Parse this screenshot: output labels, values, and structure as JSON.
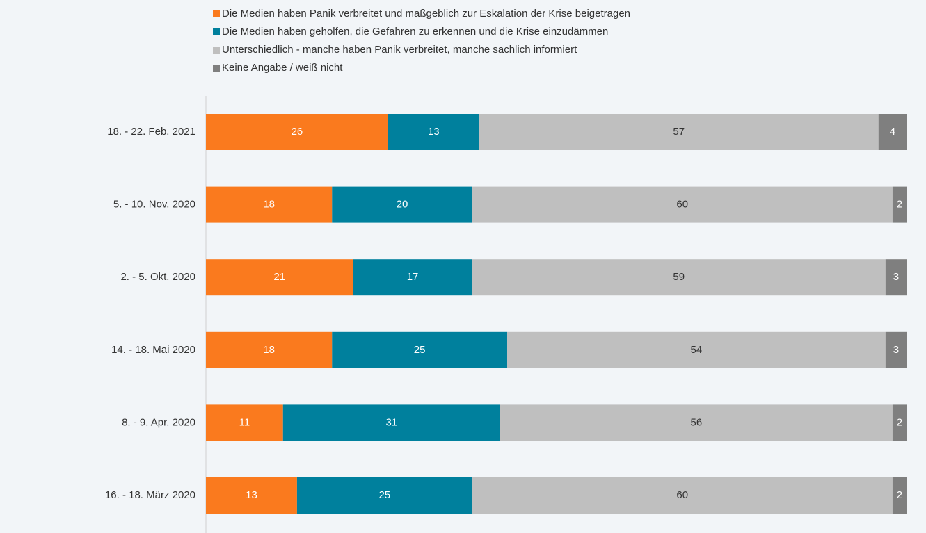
{
  "chart_data": {
    "type": "stacked-bar-horizontal",
    "categories": [
      "18. - 22. Feb. 2021",
      "5. - 10. Nov. 2020",
      "2. - 5. Okt. 2020",
      "14. - 18. Mai 2020",
      "8. - 9. Apr. 2020",
      "16. - 18. März 2020"
    ],
    "series": [
      {
        "name": "Die Medien haben Panik verbreitet und maßgeblich zur Eskalation der Krise beigetragen",
        "color": "#fa7a1e",
        "values": [
          26,
          18,
          21,
          18,
          11,
          13
        ]
      },
      {
        "name": "Die Medien haben geholfen, die Gefahren zu erkennen und die Krise einzudämmen",
        "color": "#00809d",
        "values": [
          13,
          20,
          17,
          25,
          31,
          25
        ]
      },
      {
        "name": "Unterschiedlich - manche haben Panik verbreitet, manche sachlich informiert",
        "color": "#bfbfbf",
        "values": [
          57,
          60,
          59,
          54,
          56,
          60
        ]
      },
      {
        "name": "Keine Angabe / weiß nicht",
        "color": "#7f7f7f",
        "values": [
          4,
          2,
          3,
          3,
          2,
          2
        ]
      }
    ],
    "xlim": [
      0,
      100
    ]
  }
}
